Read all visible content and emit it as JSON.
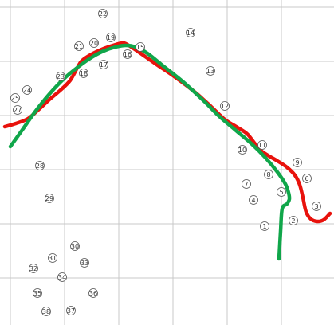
{
  "chart_data": {
    "type": "scatter",
    "title": "",
    "xlabel": "",
    "ylabel": "",
    "xlim": [
      0,
      419
    ],
    "ylim": [
      0,
      408
    ],
    "y_inverted": true,
    "grid": true,
    "grid_x": [
      13,
      81,
      149,
      217,
      285,
      353
    ],
    "grid_y": [
      9,
      77,
      145,
      213,
      281,
      349
    ],
    "colors": {
      "red_curve": "#e8120c",
      "green_curve": "#10a64a",
      "grid": "#c8c8c8",
      "point_stroke": "#555555"
    },
    "points": [
      {
        "label": "1",
        "x": 332,
        "y": 284
      },
      {
        "label": "2",
        "x": 368,
        "y": 277
      },
      {
        "label": "3",
        "x": 397,
        "y": 259
      },
      {
        "label": "4",
        "x": 318,
        "y": 251
      },
      {
        "label": "5",
        "x": 353,
        "y": 241
      },
      {
        "label": "6",
        "x": 385,
        "y": 224
      },
      {
        "label": "7",
        "x": 309,
        "y": 231
      },
      {
        "label": "8",
        "x": 337,
        "y": 219
      },
      {
        "label": "9",
        "x": 373,
        "y": 204
      },
      {
        "label": "10",
        "x": 304,
        "y": 188
      },
      {
        "label": "11",
        "x": 329,
        "y": 182
      },
      {
        "label": "12",
        "x": 282,
        "y": 133
      },
      {
        "label": "13",
        "x": 264,
        "y": 89
      },
      {
        "label": "14",
        "x": 239,
        "y": 41
      },
      {
        "label": "15",
        "x": 176,
        "y": 59
      },
      {
        "label": "16",
        "x": 160,
        "y": 68
      },
      {
        "label": "17",
        "x": 130,
        "y": 81
      },
      {
        "label": "18",
        "x": 105,
        "y": 92
      },
      {
        "label": "19",
        "x": 139,
        "y": 47
      },
      {
        "label": "20",
        "x": 118,
        "y": 54
      },
      {
        "label": "21",
        "x": 99,
        "y": 58
      },
      {
        "label": "22",
        "x": 129,
        "y": 17
      },
      {
        "label": "23",
        "x": 76,
        "y": 96
      },
      {
        "label": "24",
        "x": 34,
        "y": 113
      },
      {
        "label": "25",
        "x": 19,
        "y": 123
      },
      {
        "label": "27",
        "x": 22,
        "y": 138
      },
      {
        "label": "28",
        "x": 50,
        "y": 208
      },
      {
        "label": "29",
        "x": 62,
        "y": 249
      },
      {
        "label": "30",
        "x": 94,
        "y": 309
      },
      {
        "label": "31",
        "x": 66,
        "y": 324
      },
      {
        "label": "32",
        "x": 42,
        "y": 337
      },
      {
        "label": "33",
        "x": 106,
        "y": 330
      },
      {
        "label": "34",
        "x": 78,
        "y": 348
      },
      {
        "label": "35",
        "x": 47,
        "y": 368
      },
      {
        "label": "36",
        "x": 117,
        "y": 368
      },
      {
        "label": "37",
        "x": 89,
        "y": 390
      },
      {
        "label": "38",
        "x": 58,
        "y": 391
      }
    ],
    "series": [
      {
        "color": "#e8120c",
        "x": [
          6,
          20,
          35,
          48,
          62,
          76,
          88,
          97,
          103,
          115,
          130,
          145,
          155,
          163,
          175,
          195,
          220,
          245,
          265,
          282,
          298,
          310,
          318,
          326,
          336,
          348,
          360,
          370,
          376,
          380,
          384,
          390,
          398,
          406,
          414
        ],
        "y": [
          159,
          155,
          149,
          138,
          125,
          113,
          101,
          85,
          76,
          68,
          61,
          56,
          54,
          58,
          66,
          80,
          97,
          116,
          134,
          150,
          160,
          168,
          178,
          188,
          195,
          202,
          210,
          220,
          232,
          248,
          266,
          275,
          278,
          276,
          268
        ]
      },
      {
        "color": "#10a64a",
        "x": [
          13,
          28,
          45,
          62,
          80,
          98,
          115,
          130,
          145,
          158,
          170,
          185,
          205,
          230,
          255,
          275,
          295,
          315,
          333,
          348,
          358,
          362,
          363,
          360,
          354,
          352,
          350
        ],
        "y": [
          184,
          163,
          139,
          118,
          99,
          84,
          72,
          64,
          59,
          57,
          59,
          67,
          83,
          103,
          126,
          146,
          163,
          180,
          198,
          216,
          231,
          242,
          250,
          256,
          262,
          290,
          325
        ]
      }
    ]
  }
}
